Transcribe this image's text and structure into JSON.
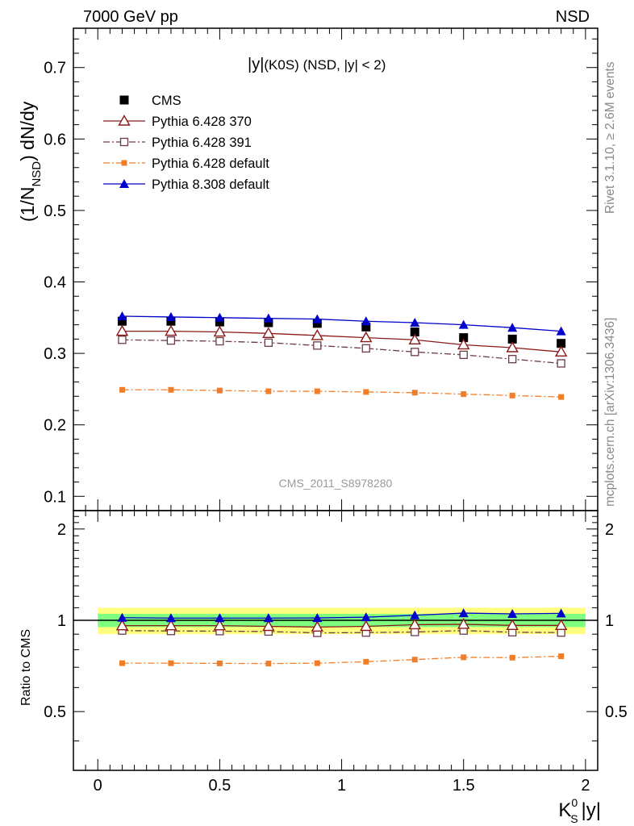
{
  "header": {
    "left": "7000 GeV pp",
    "right": "NSD"
  },
  "side_labels": {
    "rivet": "Rivet 3.1.10, ≥ 2.6M events",
    "mcplots": "mcplots.cern.ch [arXiv:1306.3436]"
  },
  "chart_data": {
    "type": "scatter",
    "title": "|y|(K0S) (NSD, |y| < 2)",
    "title_parts": {
      "sym": "|y|",
      "rest": "(K0S) (NSD, |y| < 2)"
    },
    "watermark": "CMS_2011_S8978280",
    "xlabel": "K",
    "xlabel_sup": "0",
    "xlabel_sub": "S",
    "xlabel_after": "|y|",
    "ylabel": "(1/N",
    "ylabel_sub": "NSD",
    "ylabel_after": ") dN/dy",
    "ratio_ylabel": "Ratio to CMS",
    "xlim": [
      -0.1,
      2.05
    ],
    "ylim": [
      0.08,
      0.755
    ],
    "ratio_ylim": [
      0.32,
      2.3
    ],
    "x_ticks": [
      "0",
      "0.5",
      "1",
      "1.5",
      "2"
    ],
    "y_ticks": [
      "0.1",
      "0.2",
      "0.3",
      "0.4",
      "0.5",
      "0.6",
      "0.7"
    ],
    "ratio_ticks": [
      "0.5",
      "1",
      "2"
    ],
    "legend_position": "top-left",
    "x": [
      0.1,
      0.3,
      0.5,
      0.7,
      0.9,
      1.1,
      1.3,
      1.5,
      1.7,
      1.9
    ],
    "series": [
      {
        "name": "CMS",
        "color": "#000000",
        "marker": "square-filled",
        "line": "none",
        "values": [
          0.345,
          0.345,
          0.344,
          0.343,
          0.342,
          0.337,
          0.33,
          0.322,
          0.32,
          0.314
        ],
        "ratio": [
          1,
          1,
          1,
          1,
          1,
          1,
          1,
          1,
          1,
          1
        ]
      },
      {
        "name": "Pythia 6.428 370",
        "color": "#8b1a1a",
        "marker": "triangle-open",
        "line": "solid",
        "values": [
          0.331,
          0.331,
          0.33,
          0.328,
          0.325,
          0.322,
          0.319,
          0.312,
          0.308,
          0.302
        ],
        "ratio": [
          0.96,
          0.96,
          0.96,
          0.955,
          0.95,
          0.955,
          0.967,
          0.97,
          0.962,
          0.962
        ]
      },
      {
        "name": "Pythia 6.428 391",
        "color": "#6b3a4a",
        "marker": "square-open",
        "line": "dashdot",
        "values": [
          0.319,
          0.318,
          0.317,
          0.315,
          0.311,
          0.307,
          0.302,
          0.298,
          0.292,
          0.286
        ],
        "ratio": [
          0.925,
          0.922,
          0.921,
          0.918,
          0.909,
          0.911,
          0.915,
          0.925,
          0.913,
          0.911
        ]
      },
      {
        "name": "Pythia 6.428 default",
        "color": "#f07d28",
        "marker": "square-filled-small",
        "line": "dashdot",
        "values": [
          0.249,
          0.249,
          0.248,
          0.247,
          0.247,
          0.246,
          0.245,
          0.243,
          0.241,
          0.239
        ],
        "ratio": [
          0.722,
          0.722,
          0.721,
          0.72,
          0.722,
          0.73,
          0.742,
          0.755,
          0.753,
          0.761
        ]
      },
      {
        "name": "Pythia 8.308 default",
        "color": "#0000cc",
        "marker": "triangle-filled",
        "line": "solid",
        "values": [
          0.352,
          0.351,
          0.35,
          0.349,
          0.348,
          0.345,
          0.343,
          0.34,
          0.336,
          0.331
        ],
        "ratio": [
          1.02,
          1.017,
          1.017,
          1.017,
          1.018,
          1.024,
          1.039,
          1.056,
          1.05,
          1.054
        ]
      }
    ],
    "ratio_bands": {
      "outer": {
        "low": 0.9,
        "high": 1.1,
        "color": "#ffff7f"
      },
      "inner": {
        "low": 0.95,
        "high": 1.05,
        "color": "#7fff7f"
      }
    }
  }
}
